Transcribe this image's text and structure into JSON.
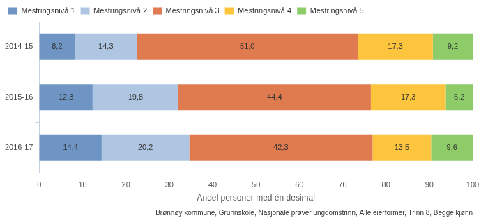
{
  "chart_data": {
    "type": "bar",
    "orientation": "horizontal",
    "stacked": true,
    "data_labels": true,
    "grid": false,
    "legend": "top-left",
    "subtitle": "Brønnøy kommune, Grunnskole, Nasjonale prøver ungdomstrinn, Alle eierformer, Trinn 8, Begge kjønn",
    "x_label": "Andel personer med én desimal",
    "categories": [
      "2014-15",
      "2015-16",
      "2016-17"
    ],
    "xlim": [
      0,
      100
    ],
    "xticks": [
      0,
      10,
      20,
      30,
      40,
      50,
      60,
      70,
      80,
      90,
      100
    ],
    "series": [
      {
        "name": "Mestringsnivå 1",
        "color": "#6f95c4",
        "values": [
          8.2,
          12.3,
          14.4
        ],
        "value_labels": [
          "8,2",
          "12,3",
          "14,4"
        ]
      },
      {
        "name": "Mestringsnivå 2",
        "color": "#aec6e2",
        "values": [
          14.3,
          19.8,
          20.2
        ],
        "value_labels": [
          "14,3",
          "19,8",
          "20,2"
        ]
      },
      {
        "name": "Mestringsnivå 3",
        "color": "#df7b4f",
        "values": [
          51.0,
          44.4,
          42.3
        ],
        "value_labels": [
          "51,0",
          "44,4",
          "42,3"
        ]
      },
      {
        "name": "Mestringsnivå 4",
        "color": "#fdc43e",
        "values": [
          17.3,
          17.3,
          13.5
        ],
        "value_labels": [
          "17,3",
          "17,3",
          "13,5"
        ]
      },
      {
        "name": "Mestringsnivå 5",
        "color": "#8dcc69",
        "values": [
          9.2,
          6.2,
          9.6
        ],
        "value_labels": [
          "9,2",
          "6,2",
          "9,6"
        ]
      }
    ]
  }
}
